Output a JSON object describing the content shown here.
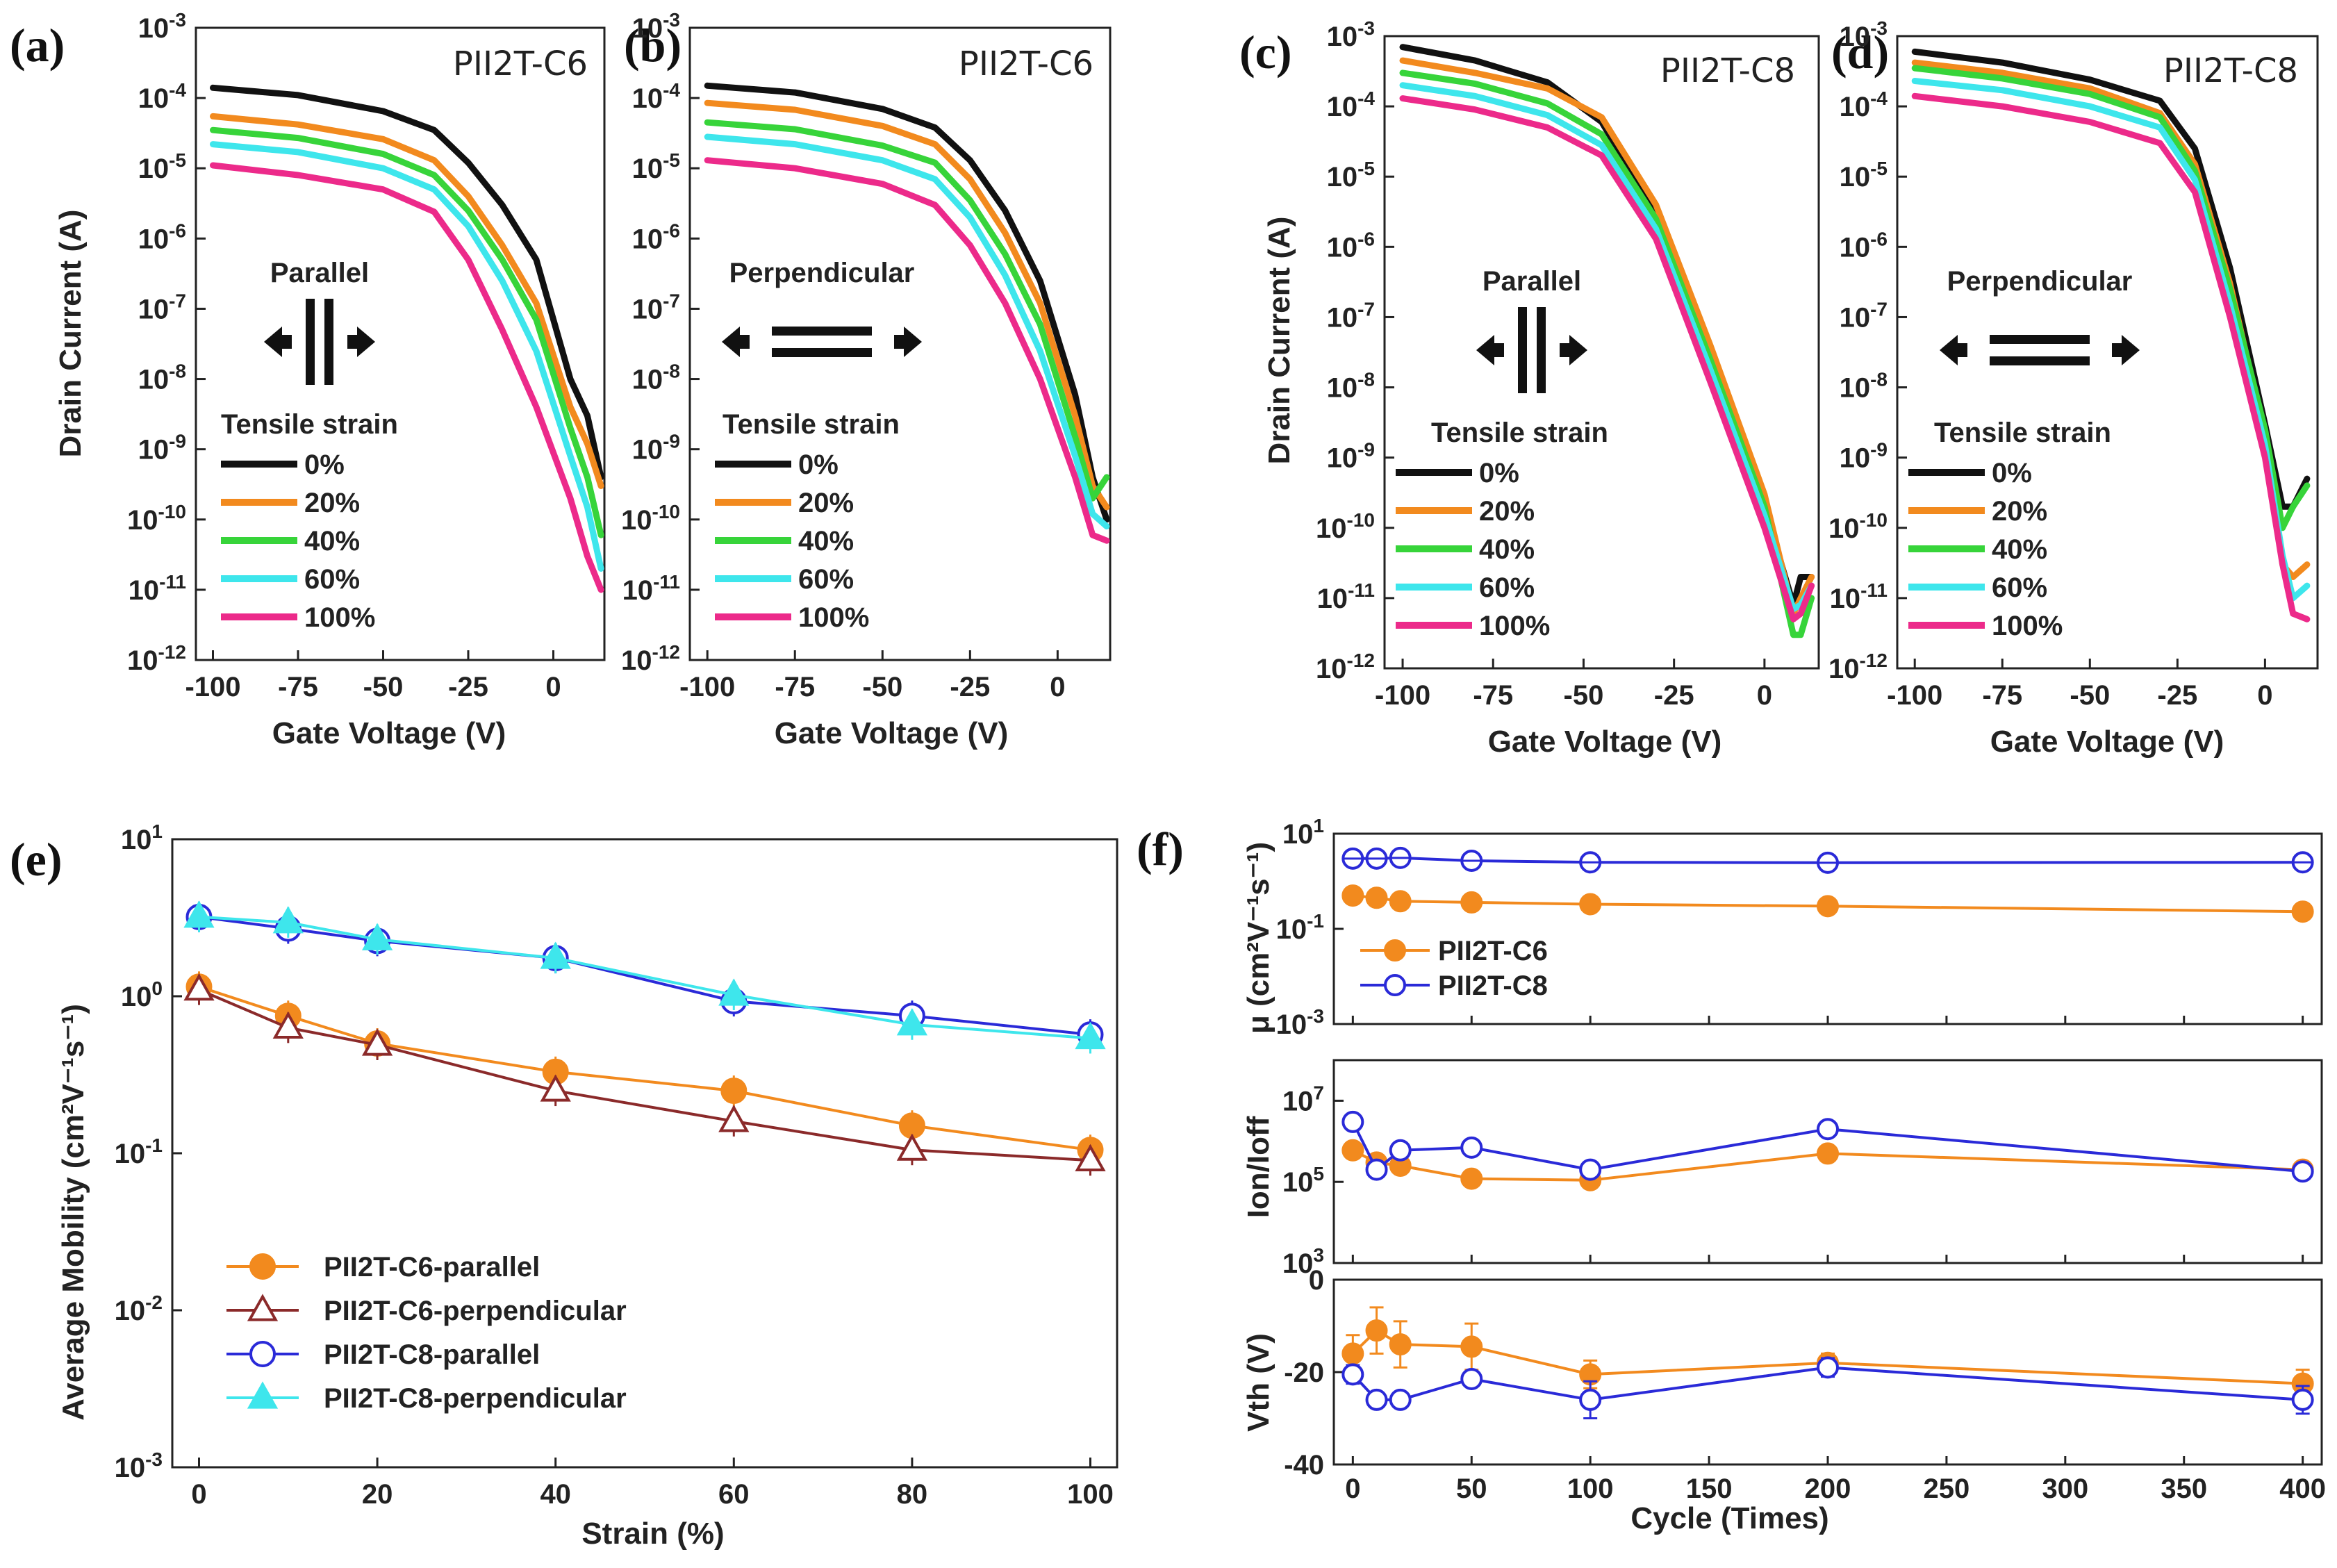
{
  "panels": {
    "a": {
      "label": "(a)",
      "title": "PII2T-C6",
      "direction": "Parallel",
      "orientation": "parallel"
    },
    "b": {
      "label": "(b)",
      "title": "PII2T-C6",
      "direction": "Perpendicular",
      "orientation": "perpendicular"
    },
    "c": {
      "label": "(c)",
      "title": "PII2T-C8",
      "direction": "Parallel",
      "orientation": "parallel"
    },
    "d": {
      "label": "(d)",
      "title": "PII2T-C8",
      "direction": "Perpendicular",
      "orientation": "perpendicular"
    },
    "e": {
      "label": "(e)"
    },
    "f": {
      "label": "(f)"
    }
  },
  "transfer": {
    "xlabel": "Gate Voltage (V)",
    "ylabel": "Drain Current (A)",
    "xticks": [
      "-100",
      "-75",
      "-50",
      "-25",
      "0"
    ],
    "ytick_mantissa": "10",
    "ytick_exponents": [
      "-3",
      "-4",
      "-5",
      "-6",
      "-7",
      "-8",
      "-9",
      "-10",
      "-11",
      "-12"
    ],
    "legend_title": "Tensile strain",
    "legend": [
      "0%",
      "20%",
      "40%",
      "60%",
      "100%"
    ],
    "colors": [
      "#111111",
      "#f28a1e",
      "#37d43a",
      "#3ee6ec",
      "#ec2a8a"
    ]
  },
  "mobility": {
    "xlabel": "Strain (%)",
    "ylabel": "Average Mobility (cm²V⁻¹s⁻¹)",
    "xticks": [
      "0",
      "20",
      "40",
      "60",
      "80",
      "100"
    ],
    "ytick_exponents": [
      "1",
      "0",
      "-1",
      "-2",
      "-3"
    ],
    "legend": [
      "PII2T-C6-parallel",
      "PII2T-C6-perpendicular",
      "PII2T-C8-parallel",
      "PII2T-C8-perpendicular"
    ]
  },
  "cycle": {
    "xlabel": "Cycle (Times)",
    "xticks": [
      "0",
      "50",
      "100",
      "150",
      "200",
      "250",
      "300",
      "350",
      "400"
    ],
    "mu_label": "μ (cm²V⁻¹s⁻¹)",
    "mu_ytick_exponents": [
      "1",
      "-1",
      "-3"
    ],
    "onoff_label": "Ion/Ioff",
    "onoff_ytick_exponents": [
      "7",
      "5",
      "3"
    ],
    "vth_label": "Vth (V)",
    "vth_yticks": [
      "0",
      "-20",
      "-40"
    ],
    "legend": [
      "PII2T-C6",
      "PII2T-C8"
    ]
  },
  "chart_data": [
    {
      "type": "line",
      "id": "a",
      "title": "PII2T-C6",
      "subtitle": "Parallel",
      "xlabel": "Gate Voltage (V)",
      "ylabel": "Drain Current (A)",
      "yscale": "log",
      "xlim": [
        -105,
        15
      ],
      "ylim": [
        1e-12,
        0.001
      ],
      "grid": false,
      "x": [
        -100,
        -75,
        -50,
        -35,
        -25,
        -15,
        -5,
        5,
        10,
        14
      ],
      "series": [
        {
          "name": "0%",
          "values": [
            0.00014,
            0.00011,
            6.5e-05,
            3.5e-05,
            1.2e-05,
            3e-06,
            5e-07,
            1e-08,
            3e-09,
            4e-10
          ]
        },
        {
          "name": "20%",
          "values": [
            5.5e-05,
            4.2e-05,
            2.6e-05,
            1.3e-05,
            4e-06,
            8e-07,
            1.2e-07,
            4e-09,
            1.2e-09,
            3e-10
          ]
        },
        {
          "name": "40%",
          "values": [
            3.5e-05,
            2.7e-05,
            1.6e-05,
            8e-06,
            2.5e-06,
            5e-07,
            7e-08,
            2e-09,
            4e-10,
            6e-11
          ]
        },
        {
          "name": "60%",
          "values": [
            2.2e-05,
            1.7e-05,
            1e-05,
            5e-06,
            1.5e-06,
            2.5e-07,
            2.5e-08,
            8e-10,
            1.5e-10,
            2e-11
          ]
        },
        {
          "name": "100%",
          "values": [
            1.1e-05,
            8e-06,
            5e-06,
            2.4e-06,
            5e-07,
            5e-08,
            4e-09,
            2e-10,
            3e-11,
            1e-11
          ]
        }
      ]
    },
    {
      "type": "line",
      "id": "b",
      "title": "PII2T-C6",
      "subtitle": "Perpendicular",
      "xlabel": "Gate Voltage (V)",
      "ylabel": "Drain Current (A)",
      "yscale": "log",
      "xlim": [
        -105,
        15
      ],
      "ylim": [
        1e-12,
        0.001
      ],
      "grid": false,
      "x": [
        -100,
        -75,
        -50,
        -35,
        -25,
        -15,
        -5,
        5,
        10,
        14
      ],
      "series": [
        {
          "name": "0%",
          "values": [
            0.00015,
            0.00012,
            7e-05,
            3.8e-05,
            1.3e-05,
            2.5e-06,
            2.5e-07,
            6e-09,
            4e-10,
            1e-10
          ]
        },
        {
          "name": "20%",
          "values": [
            8.5e-05,
            6.8e-05,
            4e-05,
            2.2e-05,
            7e-06,
            1.2e-06,
            1.2e-07,
            3e-09,
            3e-10,
            1.5e-10
          ]
        },
        {
          "name": "40%",
          "values": [
            4.5e-05,
            3.6e-05,
            2.1e-05,
            1.2e-05,
            3.5e-06,
            6e-07,
            6e-08,
            1.5e-09,
            2e-10,
            4e-10
          ]
        },
        {
          "name": "60%",
          "values": [
            2.8e-05,
            2.2e-05,
            1.3e-05,
            7e-06,
            2e-06,
            3e-07,
            2.5e-08,
            8e-10,
            1.2e-10,
            8e-11
          ]
        },
        {
          "name": "100%",
          "values": [
            1.3e-05,
            1e-05,
            6e-06,
            3e-06,
            8e-07,
            1.2e-07,
            1e-08,
            4e-10,
            6e-11,
            5e-11
          ]
        }
      ]
    },
    {
      "type": "line",
      "id": "c",
      "title": "PII2T-C8",
      "subtitle": "Parallel",
      "xlabel": "Gate Voltage (V)",
      "ylabel": "Drain Current (A)",
      "yscale": "log",
      "xlim": [
        -105,
        15
      ],
      "ylim": [
        1e-12,
        0.001
      ],
      "grid": false,
      "x": [
        -100,
        -80,
        -60,
        -45,
        -30,
        -15,
        0,
        8,
        10,
        13
      ],
      "series": [
        {
          "name": "0%",
          "values": [
            0.0007,
            0.00045,
            0.00022,
            6e-05,
            3e-06,
            3e-08,
            2e-10,
            8e-12,
            2e-11,
            2e-11
          ]
        },
        {
          "name": "20%",
          "values": [
            0.00045,
            0.0003,
            0.00018,
            7e-05,
            4e-06,
            4e-08,
            3e-10,
            6e-12,
            1e-11,
            2e-11
          ]
        },
        {
          "name": "40%",
          "values": [
            0.0003,
            0.00021,
            0.00011,
            4e-05,
            2.5e-06,
            2.5e-08,
            2e-10,
            3e-12,
            3e-12,
            1e-11
          ]
        },
        {
          "name": "60%",
          "values": [
            0.0002,
            0.00014,
            7.5e-05,
            2.8e-05,
            1.8e-06,
            1.8e-08,
            1.5e-10,
            7e-12,
            8e-12,
            1.5e-11
          ]
        },
        {
          "name": "100%",
          "values": [
            0.00013,
            9e-05,
            5e-05,
            2e-05,
            1.3e-06,
            1.2e-08,
            1e-10,
            5e-12,
            6e-12,
            1.5e-11
          ]
        }
      ]
    },
    {
      "type": "line",
      "id": "d",
      "title": "PII2T-C8",
      "subtitle": "Perpendicular",
      "xlabel": "Gate Voltage (V)",
      "ylabel": "Drain Current (A)",
      "yscale": "log",
      "xlim": [
        -105,
        15
      ],
      "ylim": [
        1e-12,
        0.001
      ],
      "grid": false,
      "x": [
        -100,
        -75,
        -50,
        -30,
        -20,
        -10,
        0,
        5,
        8,
        12
      ],
      "series": [
        {
          "name": "0%",
          "values": [
            0.0006,
            0.00042,
            0.00024,
            0.00012,
            2.5e-05,
            5e-07,
            3e-09,
            2e-10,
            2e-10,
            5e-10
          ]
        },
        {
          "name": "20%",
          "values": [
            0.00042,
            0.0003,
            0.00018,
            8e-05,
            1.5e-05,
            3e-07,
            2e-09,
            3e-11,
            2e-11,
            3e-11
          ]
        },
        {
          "name": "40%",
          "values": [
            0.00035,
            0.00025,
            0.00015,
            7e-05,
            1.2e-05,
            2.5e-07,
            2.5e-09,
            1e-10,
            2e-10,
            4e-10
          ]
        },
        {
          "name": "60%",
          "values": [
            0.00023,
            0.00017,
            0.0001,
            5e-05,
            9e-06,
            1.5e-07,
            1.5e-09,
            4e-11,
            1e-11,
            1.5e-11
          ]
        },
        {
          "name": "100%",
          "values": [
            0.00014,
            0.0001,
            6e-05,
            3e-05,
            6e-06,
            1e-07,
            1e-09,
            3e-11,
            6e-12,
            5e-12
          ]
        }
      ]
    },
    {
      "type": "line",
      "id": "e",
      "title": "",
      "xlabel": "Strain (%)",
      "ylabel": "Average Mobility (cm²V⁻¹s⁻¹)",
      "yscale": "log",
      "xlim": [
        -3,
        103
      ],
      "ylim": [
        0.001,
        10
      ],
      "grid": false,
      "series": [
        {
          "name": "PII2T-C6-parallel",
          "x": [
            0,
            10,
            20,
            40,
            60,
            80,
            100
          ],
          "values": [
            1.15,
            0.75,
            0.5,
            0.33,
            0.25,
            0.15,
            0.105
          ]
        },
        {
          "name": "PII2T-C6-perpendicular",
          "x": [
            0,
            10,
            20,
            40,
            60,
            80,
            100
          ],
          "values": [
            1.1,
            0.63,
            0.49,
            0.25,
            0.16,
            0.105,
            0.09
          ]
        },
        {
          "name": "PII2T-C8-parallel",
          "x": [
            0,
            10,
            20,
            40,
            60,
            80,
            100
          ],
          "values": [
            3.2,
            2.7,
            2.25,
            1.75,
            0.93,
            0.75,
            0.57
          ]
        },
        {
          "name": "PII2T-C8-perpendicular",
          "x": [
            0,
            10,
            20,
            40,
            60,
            80,
            100
          ],
          "values": [
            3.2,
            2.95,
            2.3,
            1.75,
            1.02,
            0.66,
            0.54
          ]
        }
      ]
    },
    {
      "type": "line",
      "id": "f-mu",
      "title": "",
      "xlabel": "Cycle (Times)",
      "ylabel": "μ (cm²V⁻¹s⁻¹)",
      "yscale": "log",
      "xlim": [
        -8,
        408
      ],
      "ylim": [
        0.001,
        10
      ],
      "grid": false,
      "x": [
        0,
        10,
        20,
        50,
        100,
        200,
        400
      ],
      "series": [
        {
          "name": "PII2T-C6",
          "values": [
            0.5,
            0.45,
            0.38,
            0.36,
            0.33,
            0.3,
            0.23
          ]
        },
        {
          "name": "PII2T-C8",
          "values": [
            3.0,
            3.0,
            3.1,
            2.7,
            2.5,
            2.45,
            2.5
          ]
        }
      ]
    },
    {
      "type": "line",
      "id": "f-onoff",
      "title": "",
      "xlabel": "Cycle (Times)",
      "ylabel": "Ion/Ioff",
      "yscale": "log",
      "xlim": [
        -8,
        408
      ],
      "ylim": [
        1000,
        100000000
      ],
      "grid": false,
      "x": [
        0,
        10,
        20,
        50,
        100,
        200,
        400
      ],
      "series": [
        {
          "name": "PII2T-C6",
          "values": [
            600000,
            300000,
            250000,
            120000,
            110000,
            500000,
            200000
          ]
        },
        {
          "name": "PII2T-C8",
          "values": [
            3000000,
            200000,
            600000,
            700000,
            200000,
            2000000,
            180000
          ]
        }
      ]
    },
    {
      "type": "line",
      "id": "f-vth",
      "title": "",
      "xlabel": "Cycle (Times)",
      "ylabel": "Vth (V)",
      "xlim": [
        -8,
        408
      ],
      "ylim": [
        -40,
        0
      ],
      "grid": false,
      "x": [
        0,
        10,
        20,
        50,
        100,
        200,
        400
      ],
      "series": [
        {
          "name": "PII2T-C6",
          "values": [
            -16,
            -11,
            -14,
            -14.5,
            -20.5,
            -18,
            -22.5
          ],
          "err": [
            4,
            5,
            5,
            5,
            3,
            2,
            3
          ]
        },
        {
          "name": "PII2T-C8",
          "values": [
            -20.5,
            -26,
            -26,
            -21.5,
            -26,
            -19,
            -26
          ],
          "err": [
            2,
            1,
            1,
            1,
            4,
            2,
            3
          ]
        }
      ]
    }
  ]
}
